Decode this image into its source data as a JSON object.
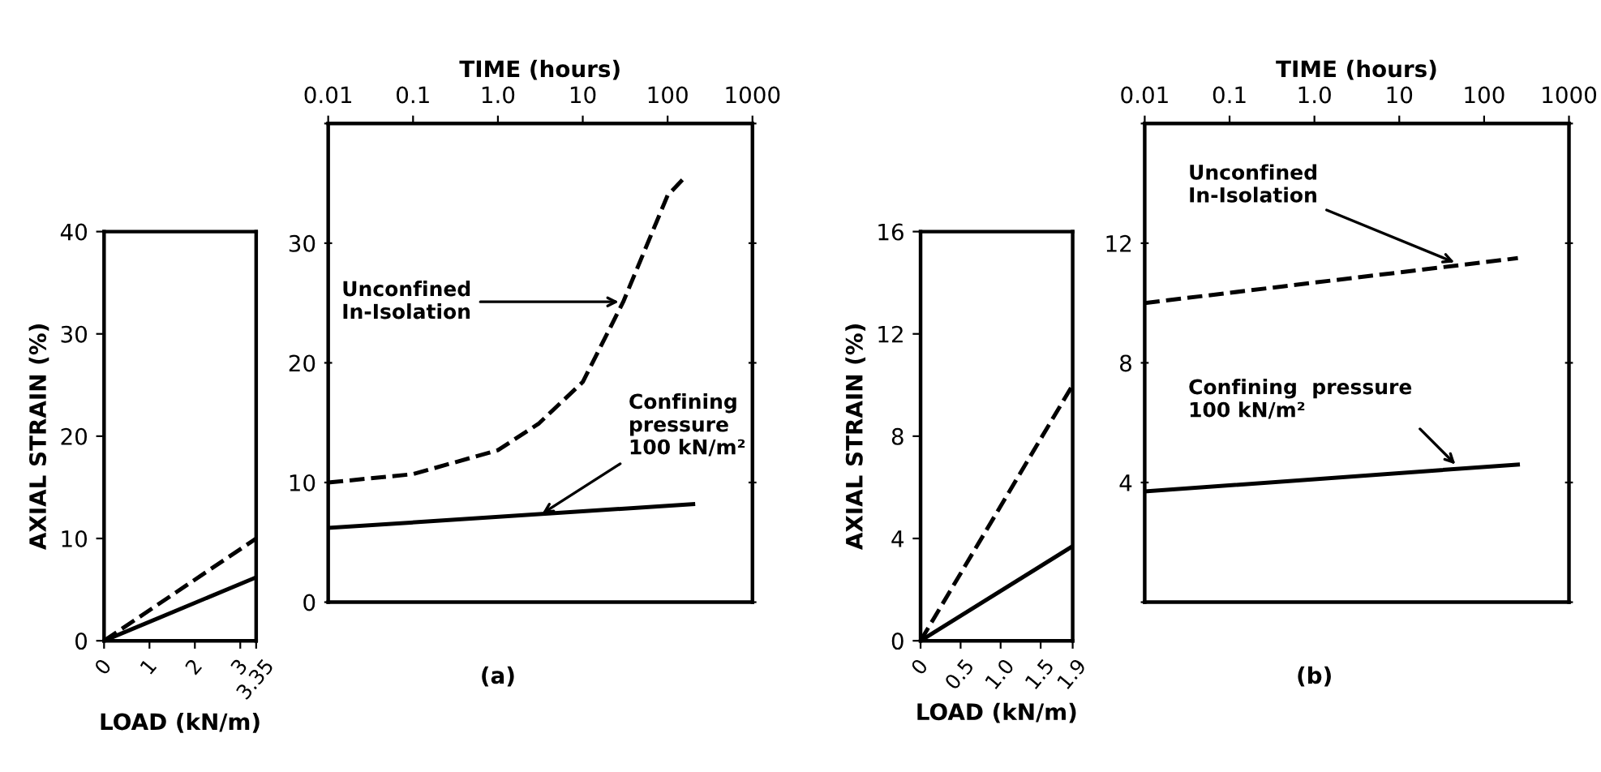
{
  "chart_data": [
    {
      "type": "line",
      "xlabel": "LOAD (kN/m)",
      "ylabel": "AXIAL STRAIN (%)",
      "xlim": [
        0,
        3.35
      ],
      "xticks": [
        0,
        1,
        2,
        3,
        {
          "value": 3.35,
          "label": "3.35"
        }
      ],
      "ylim": [
        0,
        40
      ],
      "yticks": [
        0,
        10,
        20,
        30,
        40
      ],
      "grid": false,
      "series": [
        {
          "color": "#000000",
          "line_style": "dashed",
          "x": [
            0,
            3.35
          ],
          "values": [
            0,
            10
          ]
        },
        {
          "color": "#000000",
          "line_style": "solid",
          "x": [
            0,
            3.35
          ],
          "values": [
            0,
            6.2
          ]
        }
      ]
    },
    {
      "type": "line",
      "xlabel": "TIME (hours)",
      "log": "x",
      "xlim": [
        0.01,
        1000
      ],
      "xticks": [
        {
          "value": 0.01,
          "label": "0.01"
        },
        0.1,
        {
          "value": 1,
          "label": "1.0"
        },
        10,
        100,
        1000
      ],
      "ylim": [
        0,
        40
      ],
      "yticks": [
        0,
        10,
        20,
        30,
        {
          "value": 40,
          "label": null
        }
      ],
      "grid": false,
      "annotations": [
        {
          "text": "Unconfined\nIn-Isolation",
          "x": 30,
          "y": 25.1
        },
        {
          "text": "Confining\npressure\n100 kN/m²",
          "x": 3,
          "y": 7.2
        },
        "(a)"
      ],
      "series": [
        {
          "color": "#000000",
          "line_style": "dashed",
          "x": [
            0.01,
            0.1,
            1,
            3,
            10,
            30,
            100,
            150
          ],
          "values": [
            10,
            10.7,
            12.7,
            14.9,
            18.4,
            25.1,
            34,
            35.3
          ]
        },
        {
          "color": "#000000",
          "line_style": "solid",
          "x": [
            0.01,
            200
          ],
          "values": [
            6.2,
            8.2
          ]
        }
      ]
    },
    {
      "type": "line",
      "xlabel": "LOAD (kN/m)",
      "ylabel": "AXIAL STRAIN (%)",
      "xlim": [
        0,
        1.9
      ],
      "xticks": [
        0,
        0.5,
        {
          "value": 1,
          "label": "1.0"
        },
        1.5,
        1.9
      ],
      "ylim": [
        0,
        16
      ],
      "yticks": [
        0,
        4,
        8,
        12,
        16
      ],
      "grid": false,
      "series": [
        {
          "color": "#000000",
          "line_style": "dashed",
          "x": [
            0,
            1.9
          ],
          "values": [
            0,
            10
          ]
        },
        {
          "color": "#000000",
          "line_style": "solid",
          "x": [
            0,
            1.9
          ],
          "values": [
            0,
            3.7
          ]
        }
      ]
    },
    {
      "type": "line",
      "xlabel": "TIME (hours)",
      "log": "x",
      "xlim": [
        0.01,
        1000
      ],
      "xticks": [
        {
          "value": 0.01,
          "label": "0.01"
        },
        0.1,
        {
          "value": 1,
          "label": "1.0"
        },
        10,
        100,
        1000
      ],
      "ylim": [
        0,
        16
      ],
      "yticks": [
        {
          "value": 0,
          "label": null
        },
        4,
        8,
        12,
        {
          "value": 16,
          "label": null
        }
      ],
      "grid": false,
      "annotations": [
        {
          "text": "Unconfined\nIn-Isolation",
          "x": 50,
          "y": 11.3
        },
        {
          "text": "Confining  pressure\n100 kN/m²",
          "x": 50,
          "y": 4.5
        },
        "(b)"
      ],
      "series": [
        {
          "color": "#000000",
          "line_style": "dashed",
          "x": [
            0.01,
            250
          ],
          "values": [
            10,
            11.5
          ]
        },
        {
          "color": "#000000",
          "line_style": "solid",
          "x": [
            0.01,
            250
          ],
          "values": [
            3.7,
            4.6
          ]
        }
      ]
    }
  ]
}
